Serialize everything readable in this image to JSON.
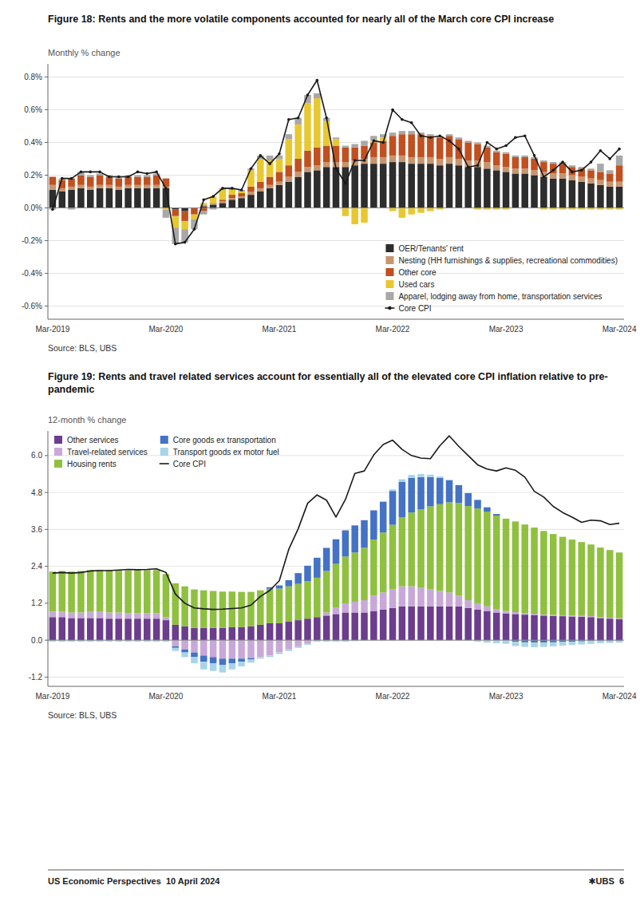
{
  "chart_data": [
    {
      "type": "bar",
      "stacked": true,
      "grid": true,
      "legend": "lower right",
      "title": "Figure 18: Rents and the more volatile components accounted for nearly all of the March core CPI increase",
      "ylabel": "Monthly % change",
      "annotations": [
        "Source: BLS, UBS"
      ],
      "ylim": [
        -0.68,
        0.88
      ],
      "yticks": [
        {
          "value": -0.6,
          "label": "-0.6%"
        },
        {
          "value": -0.4,
          "label": "-0.4%"
        },
        {
          "value": -0.2,
          "label": "-0.2%"
        },
        {
          "value": 0.0,
          "label": "0.0%"
        },
        {
          "value": 0.2,
          "label": "0.2%"
        },
        {
          "value": 0.4,
          "label": "0.4%"
        },
        {
          "value": 0.6,
          "label": "0.6%"
        },
        {
          "value": 0.8,
          "label": "0.8%"
        }
      ],
      "categories": [
        "Mar-2019",
        null,
        null,
        null,
        null,
        null,
        null,
        null,
        null,
        null,
        null,
        null,
        "Mar-2020",
        null,
        null,
        null,
        null,
        null,
        null,
        null,
        null,
        null,
        null,
        null,
        "Mar-2021",
        null,
        null,
        null,
        null,
        null,
        null,
        null,
        null,
        null,
        null,
        null,
        "Mar-2022",
        null,
        null,
        null,
        null,
        null,
        null,
        null,
        null,
        null,
        null,
        null,
        "Mar-2023",
        null,
        null,
        null,
        null,
        null,
        null,
        null,
        null,
        null,
        null,
        null,
        "Mar-2024"
      ],
      "series": [
        {
          "name": "OER/Tenants' rent",
          "color": "#2d2d2d",
          "values": [
            0.11,
            0.1,
            0.11,
            0.12,
            0.11,
            0.12,
            0.12,
            0.11,
            0.12,
            0.12,
            0.12,
            0.12,
            0.12,
            -0.01,
            -0.02,
            0.0,
            0.01,
            0.02,
            0.03,
            0.05,
            0.06,
            0.08,
            0.1,
            0.12,
            0.14,
            0.16,
            0.19,
            0.22,
            0.23,
            0.25,
            0.25,
            0.25,
            0.26,
            0.27,
            0.27,
            0.27,
            0.28,
            0.28,
            0.27,
            0.27,
            0.27,
            0.26,
            0.27,
            0.26,
            0.25,
            0.25,
            0.24,
            0.23,
            0.22,
            0.21,
            0.21,
            0.2,
            0.19,
            0.18,
            0.18,
            0.17,
            0.16,
            0.15,
            0.14,
            0.13,
            0.13
          ]
        },
        {
          "name": "Nesting (HH furnishings & supplies, recreational commodities)",
          "color": "#c8956e",
          "values": [
            0.03,
            0.02,
            0.02,
            0.02,
            0.02,
            0.02,
            0.02,
            0.02,
            0.02,
            0.02,
            0.02,
            0.02,
            0.01,
            0.0,
            0.0,
            0.0,
            0.01,
            0.01,
            0.01,
            0.01,
            0.01,
            0.02,
            0.02,
            0.02,
            0.02,
            0.03,
            0.03,
            0.03,
            0.03,
            0.03,
            0.03,
            0.03,
            0.03,
            0.03,
            0.04,
            0.04,
            0.04,
            0.04,
            0.04,
            0.04,
            0.04,
            0.04,
            0.04,
            0.04,
            0.04,
            0.04,
            0.04,
            0.03,
            0.03,
            0.03,
            0.03,
            0.03,
            0.03,
            0.03,
            0.03,
            0.03,
            0.03,
            0.03,
            0.03,
            0.03,
            0.03
          ]
        },
        {
          "name": "Other core",
          "color": "#c05020",
          "values": [
            0.05,
            0.05,
            0.05,
            0.06,
            0.06,
            0.06,
            0.05,
            0.05,
            0.05,
            0.05,
            0.05,
            0.06,
            0.05,
            -0.04,
            -0.06,
            -0.04,
            -0.02,
            0.0,
            0.01,
            0.02,
            0.02,
            0.03,
            0.04,
            0.05,
            0.06,
            0.07,
            0.08,
            0.1,
            0.11,
            0.1,
            0.1,
            0.09,
            0.08,
            0.08,
            0.09,
            0.1,
            0.12,
            0.13,
            0.14,
            0.14,
            0.13,
            0.13,
            0.13,
            0.12,
            0.11,
            0.1,
            0.09,
            0.08,
            0.08,
            0.07,
            0.07,
            0.07,
            0.06,
            0.06,
            0.06,
            0.05,
            0.05,
            0.05,
            0.05,
            0.05,
            0.1
          ]
        },
        {
          "name": "Used cars",
          "color": "#e8c830",
          "values": [
            0.0,
            0.0,
            0.0,
            0.0,
            0.0,
            0.0,
            0.0,
            0.0,
            0.0,
            0.0,
            0.0,
            0.0,
            -0.01,
            -0.07,
            -0.05,
            -0.03,
            0.01,
            0.04,
            0.06,
            0.03,
            0.01,
            0.1,
            0.14,
            0.1,
            0.08,
            0.16,
            0.21,
            0.29,
            0.3,
            0.15,
            0.04,
            -0.05,
            -0.1,
            -0.09,
            0.01,
            0.02,
            -0.02,
            -0.06,
            -0.04,
            -0.03,
            -0.02,
            -0.01,
            0.0,
            0.0,
            0.0,
            -0.01,
            -0.01,
            -0.01,
            -0.01,
            0.0,
            0.0,
            0.0,
            -0.01,
            -0.01,
            -0.01,
            -0.01,
            -0.01,
            -0.01,
            -0.01,
            -0.01,
            -0.01
          ]
        },
        {
          "name": "Apparel, lodging away from home, transportation services",
          "color": "#a8a8a8",
          "values": [
            -0.01,
            0.01,
            -0.01,
            0.02,
            0.01,
            0.01,
            0.01,
            0.01,
            0.01,
            0.01,
            0.01,
            0.01,
            -0.05,
            -0.1,
            -0.08,
            -0.06,
            -0.02,
            -0.01,
            0.01,
            0.01,
            0.01,
            0.01,
            0.02,
            0.03,
            0.02,
            0.03,
            0.04,
            0.05,
            0.03,
            0.02,
            0.01,
            0.01,
            0.02,
            0.03,
            0.03,
            0.02,
            0.02,
            0.02,
            0.02,
            0.01,
            0.01,
            0.01,
            0.01,
            0.01,
            0.01,
            0.01,
            0.01,
            0.01,
            0.01,
            0.01,
            0.01,
            0.01,
            0.01,
            0.01,
            0.01,
            0.01,
            0.01,
            0.01,
            0.05,
            0.02,
            0.06
          ]
        },
        {
          "name": "Core CPI",
          "type": "line",
          "marker": "circle",
          "color": "#1a1a1a",
          "values": [
            -0.01,
            0.18,
            0.18,
            0.22,
            0.22,
            0.22,
            0.19,
            0.19,
            0.19,
            0.22,
            0.21,
            0.22,
            0.12,
            -0.22,
            -0.21,
            -0.13,
            0.05,
            0.07,
            0.12,
            0.12,
            0.11,
            0.24,
            0.32,
            0.27,
            0.33,
            0.54,
            0.55,
            0.69,
            0.78,
            0.55,
            0.24,
            0.15,
            0.29,
            0.29,
            0.41,
            0.4,
            0.6,
            0.54,
            0.52,
            0.44,
            0.43,
            0.44,
            0.41,
            0.36,
            0.25,
            0.26,
            0.4,
            0.36,
            0.38,
            0.43,
            0.44,
            0.32,
            0.19,
            0.23,
            0.28,
            0.22,
            0.23,
            0.28,
            0.35,
            0.3,
            0.36
          ]
        }
      ]
    },
    {
      "type": "bar",
      "stacked": true,
      "grid": true,
      "legend": "upper left",
      "title": "Figure 19: Rents and travel related services account for essentially all of the elevated core CPI inflation relative to pre-\npandemic",
      "ylabel": "12-month % change",
      "annotations": [
        "Source: BLS, UBS"
      ],
      "ylim": [
        -1.5,
        6.8
      ],
      "yticks": [
        -1.2,
        {
          "value": 0.0,
          "label": "0.0"
        },
        1.2,
        2.4,
        3.6,
        4.8,
        {
          "value": 6.0,
          "label": "6.0"
        }
      ],
      "categories": [
        "Mar-2019",
        null,
        null,
        null,
        null,
        null,
        null,
        null,
        null,
        null,
        null,
        null,
        "Mar-2020",
        null,
        null,
        null,
        null,
        null,
        null,
        null,
        null,
        null,
        null,
        null,
        "Mar-2021",
        null,
        null,
        null,
        null,
        null,
        null,
        null,
        null,
        null,
        null,
        null,
        "Mar-2022",
        null,
        null,
        null,
        null,
        null,
        null,
        null,
        null,
        null,
        null,
        null,
        "Mar-2023",
        null,
        null,
        null,
        null,
        null,
        null,
        null,
        null,
        null,
        null,
        null,
        "Mar-2024"
      ],
      "series": [
        {
          "name": "Other services",
          "color": "#6b3d8c",
          "values": [
            0.75,
            0.75,
            0.72,
            0.72,
            0.72,
            0.72,
            0.7,
            0.7,
            0.7,
            0.7,
            0.7,
            0.7,
            0.65,
            0.5,
            0.45,
            0.4,
            0.4,
            0.4,
            0.4,
            0.42,
            0.43,
            0.45,
            0.5,
            0.55,
            0.55,
            0.6,
            0.65,
            0.7,
            0.75,
            0.8,
            0.85,
            0.9,
            0.9,
            0.9,
            0.95,
            1.0,
            1.05,
            1.1,
            1.1,
            1.1,
            1.1,
            1.1,
            1.1,
            1.1,
            1.05,
            1.0,
            0.95,
            0.9,
            0.87,
            0.85,
            0.83,
            0.82,
            0.8,
            0.79,
            0.78,
            0.77,
            0.76,
            0.75,
            0.72,
            0.7,
            0.68
          ]
        },
        {
          "name": "Travel-related services",
          "color": "#c8a8d8",
          "values": [
            0.18,
            0.18,
            0.18,
            0.18,
            0.2,
            0.2,
            0.2,
            0.2,
            0.18,
            0.18,
            0.18,
            0.18,
            0.1,
            -0.2,
            -0.3,
            -0.4,
            -0.5,
            -0.55,
            -0.6,
            -0.6,
            -0.6,
            -0.58,
            -0.55,
            -0.5,
            -0.4,
            -0.3,
            -0.2,
            -0.1,
            0.0,
            0.1,
            0.2,
            0.3,
            0.35,
            0.4,
            0.5,
            0.55,
            0.6,
            0.65,
            0.65,
            0.6,
            0.55,
            0.5,
            0.45,
            0.35,
            0.25,
            0.2,
            0.15,
            0.1,
            0.08,
            0.06,
            0.05,
            0.04,
            0.03,
            0.03,
            0.03,
            0.03,
            0.03,
            0.03,
            0.03,
            0.03,
            0.03
          ]
        },
        {
          "name": "Housing rents",
          "color": "#90c040",
          "values": [
            1.3,
            1.32,
            1.33,
            1.35,
            1.36,
            1.37,
            1.38,
            1.38,
            1.39,
            1.4,
            1.4,
            1.4,
            1.4,
            1.35,
            1.3,
            1.25,
            1.22,
            1.2,
            1.18,
            1.16,
            1.14,
            1.12,
            1.12,
            1.12,
            1.13,
            1.15,
            1.18,
            1.22,
            1.28,
            1.35,
            1.43,
            1.52,
            1.6,
            1.7,
            1.82,
            1.95,
            2.1,
            2.25,
            2.4,
            2.55,
            2.7,
            2.82,
            2.93,
            3.01,
            3.06,
            3.08,
            3.08,
            3.05,
            3.0,
            2.95,
            2.88,
            2.8,
            2.72,
            2.63,
            2.55,
            2.47,
            2.4,
            2.33,
            2.26,
            2.2,
            2.14
          ]
        },
        {
          "name": "Core goods ex transportation",
          "color": "#4472c4",
          "values": [
            0.0,
            0.0,
            0.0,
            0.0,
            0.0,
            0.0,
            0.0,
            0.0,
            0.0,
            0.0,
            0.0,
            0.0,
            0.0,
            -0.05,
            -0.1,
            -0.15,
            -0.2,
            -0.2,
            -0.2,
            -0.15,
            -0.1,
            -0.05,
            0.0,
            0.05,
            0.1,
            0.2,
            0.35,
            0.5,
            0.65,
            0.75,
            0.8,
            0.85,
            0.88,
            0.9,
            0.95,
            1.0,
            1.1,
            1.15,
            1.12,
            1.05,
            0.95,
            0.85,
            0.72,
            0.58,
            0.42,
            0.28,
            0.14,
            0.05,
            0.0,
            -0.05,
            -0.07,
            -0.08,
            -0.08,
            -0.07,
            -0.06,
            -0.05,
            -0.04,
            -0.03,
            -0.02,
            -0.02,
            -0.02
          ]
        },
        {
          "name": "Transport goods ex motor fuel",
          "color": "#a8d4e8",
          "values": [
            -0.05,
            -0.05,
            -0.05,
            -0.05,
            -0.05,
            -0.05,
            -0.05,
            -0.05,
            -0.05,
            -0.05,
            -0.05,
            -0.05,
            -0.05,
            -0.1,
            -0.15,
            -0.2,
            -0.25,
            -0.25,
            -0.25,
            -0.2,
            -0.15,
            -0.1,
            -0.05,
            -0.05,
            -0.05,
            -0.05,
            -0.05,
            -0.05,
            -0.05,
            -0.05,
            -0.05,
            -0.05,
            -0.03,
            -0.02,
            0.0,
            0.02,
            0.05,
            0.08,
            0.1,
            0.1,
            0.08,
            0.05,
            0.02,
            0.0,
            -0.02,
            -0.05,
            -0.08,
            -0.1,
            -0.12,
            -0.14,
            -0.15,
            -0.15,
            -0.14,
            -0.13,
            -0.12,
            -0.11,
            -0.1,
            -0.09,
            -0.08,
            -0.07,
            -0.06
          ]
        },
        {
          "name": "Core CPI",
          "type": "line",
          "color": "#1a1a1a",
          "values": [
            2.18,
            2.2,
            2.18,
            2.2,
            2.25,
            2.26,
            2.26,
            2.28,
            2.3,
            2.29,
            2.3,
            2.32,
            2.2,
            1.5,
            1.2,
            1.05,
            1.02,
            1.0,
            1.01,
            1.03,
            1.05,
            1.14,
            1.42,
            1.62,
            1.93,
            2.95,
            3.62,
            4.45,
            4.72,
            4.55,
            4.0,
            4.57,
            5.42,
            5.5,
            6.02,
            6.36,
            6.5,
            6.2,
            6.0,
            5.92,
            5.9,
            6.32,
            6.64,
            6.3,
            6.0,
            5.7,
            5.56,
            5.5,
            5.6,
            5.52,
            5.3,
            4.84,
            4.65,
            4.35,
            4.15,
            4.0,
            3.83,
            3.9,
            3.88,
            3.76,
            3.8
          ]
        }
      ]
    }
  ],
  "footer": [
    "US Economic Perspectives  10 April 2024",
    "✱UBS  6"
  ]
}
